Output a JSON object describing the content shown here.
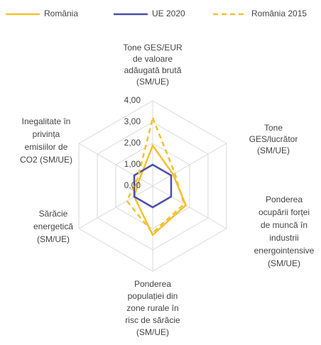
{
  "chart_data": {
    "type": "radar",
    "categories": [
      [
        "Tone GES/EUR",
        "de valoare",
        "adăugată brută",
        "(SM/UE)"
      ],
      [
        "Tone",
        "GES/lucrător",
        "(SM/UE)"
      ],
      [
        "Ponderea",
        "ocupării forței",
        "de muncă în",
        "industrii",
        "energointensive",
        "(SM/UE)"
      ],
      [
        "Ponderea",
        "populației din",
        "zone rurale în",
        "risc de sărăcie",
        "(SM/UE)"
      ],
      [
        "Sărăcie",
        "energetică",
        "(SM/UE)"
      ],
      [
        "Inegalitate în",
        "privința",
        "emisiilor de",
        "CO2 (SM/UE)"
      ]
    ],
    "series": [
      {
        "name": "România",
        "color": "#f2c12e",
        "dashed": false,
        "values": [
          1.9,
          1.1,
          1.8,
          2.3,
          1.0,
          0.7
        ]
      },
      {
        "name": "UE 2020",
        "color": "#4b4fa8",
        "dashed": false,
        "values": [
          1,
          1,
          1,
          1,
          1,
          1
        ]
      },
      {
        "name": "România 2015",
        "color": "#f2c12e",
        "dashed": true,
        "values": [
          3.2,
          1.2,
          1.7,
          2.2,
          1.4,
          0.8
        ]
      }
    ],
    "ylim": [
      0,
      4
    ],
    "yticks": [
      {
        "value": 0,
        "label": "0,00"
      },
      {
        "value": 1,
        "label": "1,00"
      },
      {
        "value": 2,
        "label": "2,00"
      },
      {
        "value": 3,
        "label": "3,00"
      },
      {
        "value": 4,
        "label": "4,00"
      }
    ],
    "grid": true,
    "legend": "top"
  }
}
